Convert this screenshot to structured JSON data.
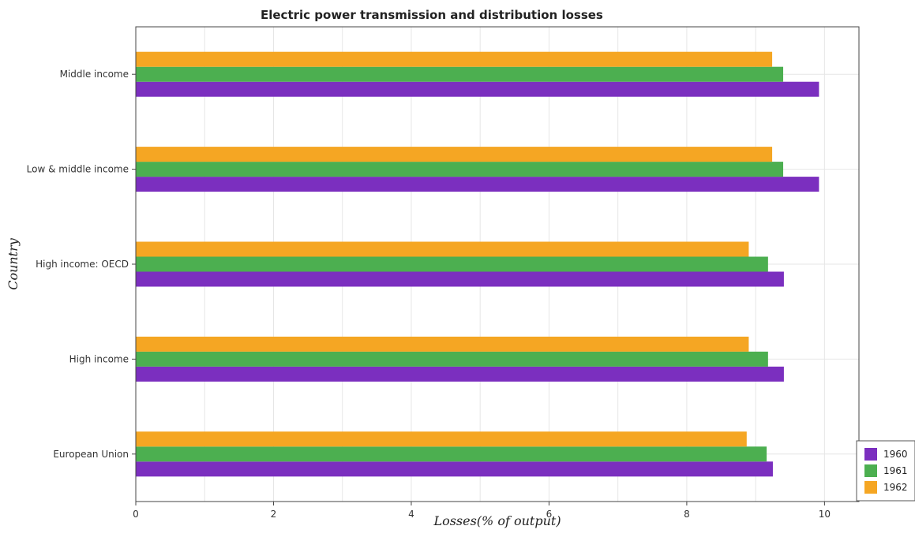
{
  "chart_data": {
    "type": "bar",
    "orientation": "horizontal",
    "title": "Electric power transmission and distribution losses",
    "xlabel": "Losses(% of output)",
    "ylabel": "Country",
    "xlim": [
      0,
      10.5
    ],
    "xticks": [
      0,
      2,
      4,
      6,
      8,
      10
    ],
    "grid": true,
    "legend_position": "bottom-right",
    "categories": [
      "European Union",
      "High income",
      "High income: OECD",
      "Low & middle income",
      "Middle income"
    ],
    "series": [
      {
        "name": "1960",
        "color": "#7b2fbf",
        "values": [
          9.25,
          9.41,
          9.41,
          9.92,
          9.92
        ]
      },
      {
        "name": "1961",
        "color": "#4caf50",
        "values": [
          9.16,
          9.18,
          9.18,
          9.4,
          9.4
        ]
      },
      {
        "name": "1962",
        "color": "#f5a623",
        "values": [
          8.87,
          8.9,
          8.9,
          9.24,
          9.24
        ]
      }
    ]
  }
}
